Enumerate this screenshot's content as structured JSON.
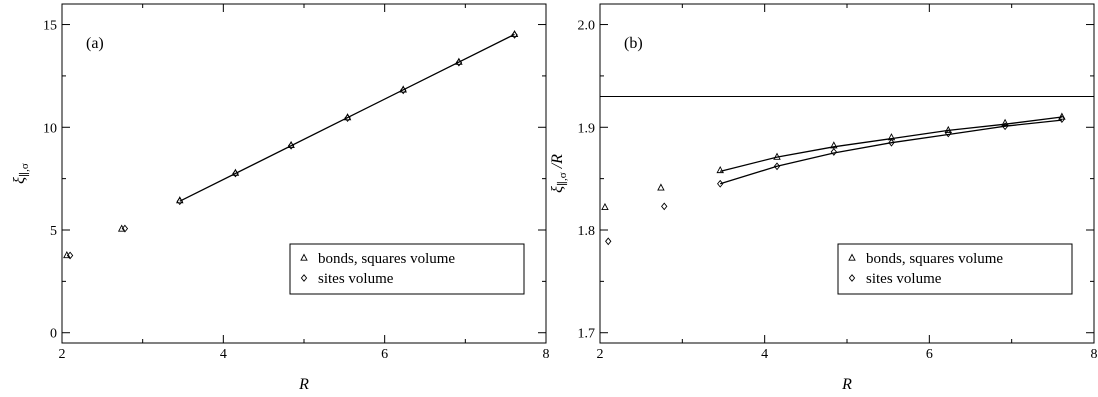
{
  "chart_data": [
    {
      "type": "scatter",
      "panel_label": "(a)",
      "xlabel": "R",
      "ylabel_main": "ξ",
      "ylabel_sub": "∥,σ",
      "xlim": [
        2,
        8
      ],
      "ylim": [
        -0.5,
        16
      ],
      "xticks": [
        2,
        4,
        6,
        8
      ],
      "xminor": [
        3,
        5,
        7
      ],
      "yticks": [
        0,
        5,
        10,
        15
      ],
      "ytick_labels": [
        "0",
        "5",
        "10",
        "15"
      ],
      "xtick_labels": [
        "2",
        "4",
        "6",
        "8"
      ],
      "legend": {
        "position": "lower-right",
        "entries": [
          "bonds, squares volume",
          "sites volume"
        ]
      },
      "series": [
        {
          "name": "bonds, squares volume",
          "marker": "triangle",
          "x": [
            2.06,
            2.74,
            3.46,
            4.15,
            4.84,
            5.54,
            6.23,
            6.92,
            7.61
          ],
          "y": [
            3.76,
            5.05,
            6.43,
            7.77,
            9.12,
            10.47,
            11.82,
            13.17,
            14.52
          ]
        },
        {
          "name": "sites volume",
          "marker": "diamond",
          "x": [
            2.1,
            2.78,
            3.46,
            4.15,
            4.84,
            5.54,
            6.23,
            6.92,
            7.61
          ],
          "y": [
            3.76,
            5.07,
            6.4,
            7.75,
            9.1,
            10.45,
            11.8,
            13.15,
            14.5
          ]
        }
      ],
      "fit_lines": [
        {
          "x": [
            3.46,
            7.61
          ],
          "y": [
            6.4,
            14.52
          ]
        }
      ]
    },
    {
      "type": "scatter",
      "panel_label": "(b)",
      "xlabel": "R",
      "ylabel_main": "ξ",
      "ylabel_sub": "∥,σ",
      "ylabel_suffix": " /R",
      "xlim": [
        2,
        8
      ],
      "ylim": [
        1.69,
        2.02
      ],
      "xticks": [
        2,
        4,
        6,
        8
      ],
      "xminor": [
        3,
        5,
        7
      ],
      "yticks": [
        1.7,
        1.8,
        1.9,
        2.0
      ],
      "ytick_labels": [
        "1.7",
        "1.8",
        "1.9",
        "2.0"
      ],
      "xtick_labels": [
        "2",
        "4",
        "6",
        "8"
      ],
      "hline": 1.93,
      "legend": {
        "position": "lower-right",
        "entries": [
          "bonds, squares volume",
          "sites volume"
        ]
      },
      "series": [
        {
          "name": "bonds, squares volume",
          "marker": "triangle",
          "x": [
            2.06,
            2.74,
            3.46,
            4.15,
            4.84,
            5.54,
            6.23,
            6.92,
            7.61
          ],
          "y": [
            1.822,
            1.841,
            1.858,
            1.871,
            1.882,
            1.89,
            1.897,
            1.904,
            1.91
          ]
        },
        {
          "name": "sites volume",
          "marker": "diamond",
          "x": [
            2.1,
            2.78,
            3.46,
            4.15,
            4.84,
            5.54,
            6.23,
            6.92,
            7.61
          ],
          "y": [
            1.789,
            1.823,
            1.845,
            1.862,
            1.876,
            1.885,
            1.894,
            1.901,
            1.908
          ]
        }
      ],
      "fit_curves": [
        {
          "x": [
            3.46,
            4.15,
            4.84,
            5.54,
            6.23,
            6.92,
            7.61
          ],
          "y": [
            1.857,
            1.871,
            1.881,
            1.889,
            1.897,
            1.903,
            1.91
          ]
        },
        {
          "x": [
            3.46,
            4.15,
            4.84,
            5.54,
            6.23,
            6.92,
            7.61
          ],
          "y": [
            1.845,
            1.862,
            1.875,
            1.885,
            1.893,
            1.901,
            1.907
          ]
        }
      ]
    }
  ]
}
